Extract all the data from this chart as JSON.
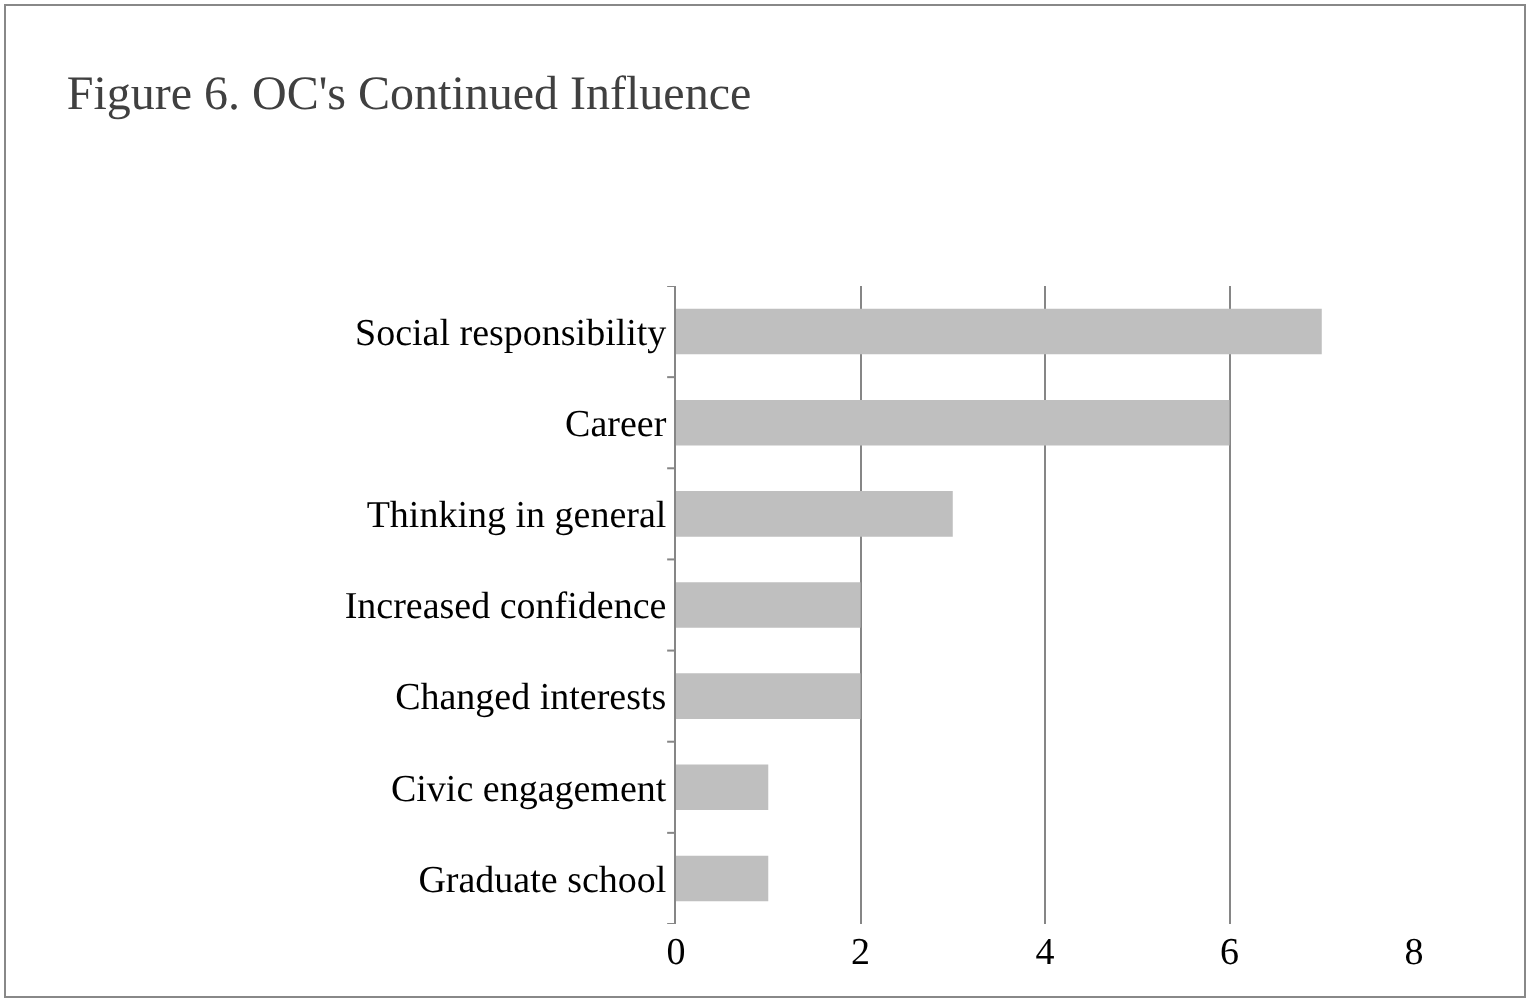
{
  "chart_data": {
    "type": "bar",
    "orientation": "horizontal",
    "title": "Figure 6. OC's Continued Influence",
    "categories": [
      "Social responsibility",
      "Career",
      "Thinking in general",
      "Increased confidence",
      "Changed interests",
      "Civic engagement",
      "Graduate school"
    ],
    "values": [
      7,
      6,
      3,
      2,
      2,
      1,
      1
    ],
    "color": "#bfbfbf",
    "xlim": [
      0,
      8
    ],
    "xticks": [
      0,
      2,
      4,
      6,
      8
    ],
    "grid": "x"
  }
}
